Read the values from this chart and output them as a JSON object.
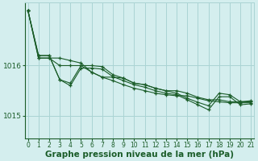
{
  "bg_color": "#d4eeee",
  "grid_color": "#aad4d4",
  "line_color": "#1a5c28",
  "xlabel": "Graphe pression niveau de la mer (hPa)",
  "xlabel_fontsize": 7.5,
  "yticks": [
    1015,
    1016
  ],
  "xlim": [
    -0.3,
    21.3
  ],
  "ylim": [
    1014.55,
    1017.25
  ],
  "xticks": [
    0,
    1,
    2,
    3,
    4,
    5,
    6,
    7,
    8,
    9,
    10,
    11,
    12,
    13,
    14,
    15,
    16,
    17,
    18,
    19,
    20,
    21
  ],
  "series": [
    [
      1017.1,
      1016.15,
      1016.15,
      1016.0,
      1016.0,
      1016.0,
      1015.87,
      1015.77,
      1015.77,
      1015.75,
      1015.65,
      1015.62,
      1015.55,
      1015.5,
      1015.5,
      1015.45,
      1015.37,
      1015.32,
      1015.32,
      1015.28,
      1015.28,
      1015.28
    ],
    [
      1017.1,
      1016.15,
      1016.15,
      1016.15,
      1016.1,
      1016.05,
      1015.87,
      1015.77,
      1015.7,
      1015.62,
      1015.55,
      1015.5,
      1015.45,
      1015.42,
      1015.4,
      1015.4,
      1015.35,
      1015.3,
      1015.28,
      1015.26,
      1015.26,
      1015.26
    ],
    [
      1017.1,
      1016.2,
      1016.2,
      1015.72,
      1015.65,
      1016.0,
      1016.0,
      1015.98,
      1015.82,
      1015.75,
      1015.65,
      1015.62,
      1015.55,
      1015.5,
      1015.45,
      1015.35,
      1015.27,
      1015.2,
      1015.45,
      1015.42,
      1015.28,
      1015.3
    ],
    [
      1017.1,
      1016.2,
      1016.2,
      1015.72,
      1015.6,
      1015.95,
      1015.95,
      1015.93,
      1015.78,
      1015.7,
      1015.62,
      1015.57,
      1015.5,
      1015.45,
      1015.42,
      1015.32,
      1015.22,
      1015.12,
      1015.38,
      1015.38,
      1015.22,
      1015.24
    ]
  ]
}
